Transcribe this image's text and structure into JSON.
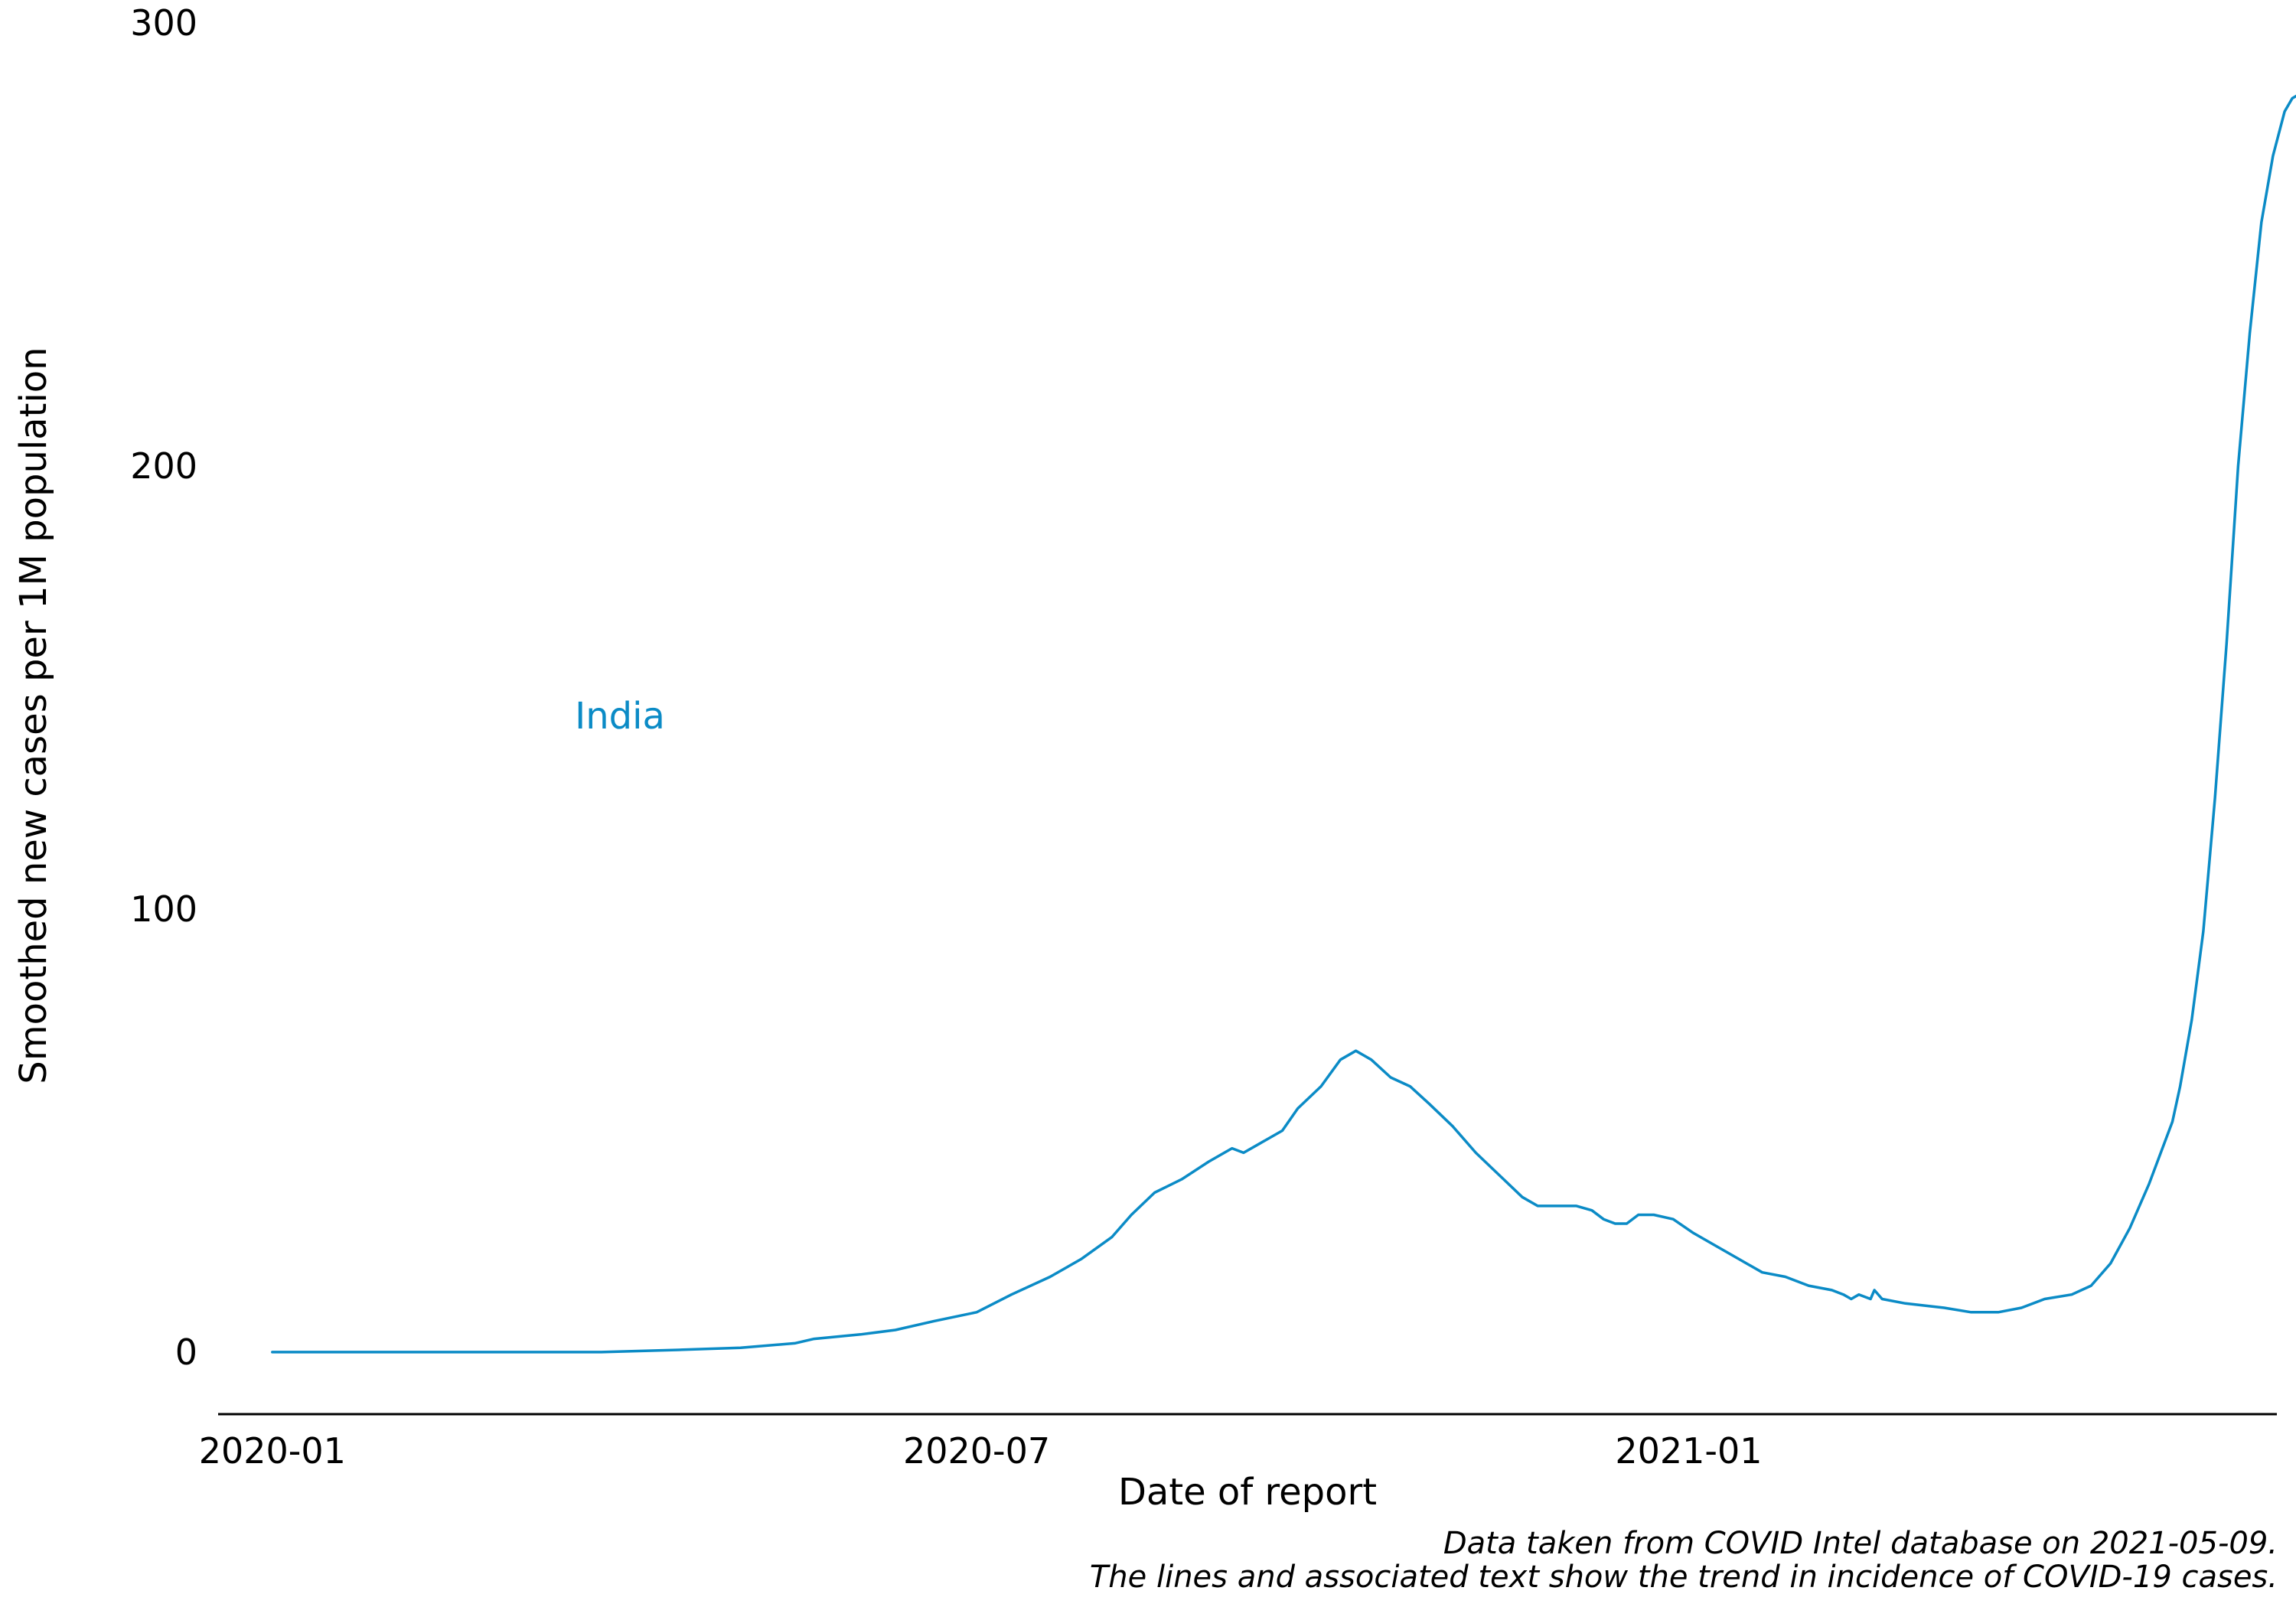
{
  "chart_data": {
    "type": "line",
    "title": "",
    "xlabel": "Date of report",
    "ylabel": "Smoothed new cases per 1M population",
    "ylim": [
      -14,
      300
    ],
    "xlim": [
      "2019-12-18",
      "2021-06-02"
    ],
    "grid": false,
    "x_ticks": [
      "2020-01",
      "2020-07",
      "2021-01"
    ],
    "x_tick_dates": [
      "2020-01-01",
      "2020-07-01",
      "2021-01-01"
    ],
    "y_ticks": [
      0,
      100,
      200,
      300
    ],
    "y_tick_labels": [
      "0",
      "100",
      "200",
      "300"
    ],
    "caption_lines": [
      "Data taken from COVID Intel database on 2021-05-09.",
      "The lines and associated text show the trend in incidence of COVID-19 cases."
    ],
    "series": [
      {
        "name": "India",
        "color": "#0b8bc6",
        "points": [
          [
            "2020-01-01",
            0
          ],
          [
            "2020-02-15",
            0
          ],
          [
            "2020-03-26",
            0
          ],
          [
            "2020-04-15",
            0.5
          ],
          [
            "2020-05-01",
            1
          ],
          [
            "2020-05-15",
            2
          ],
          [
            "2020-05-20",
            3
          ],
          [
            "2020-06-01",
            4
          ],
          [
            "2020-06-10",
            5
          ],
          [
            "2020-06-20",
            7
          ],
          [
            "2020-07-01",
            9
          ],
          [
            "2020-07-10",
            13
          ],
          [
            "2020-07-20",
            17
          ],
          [
            "2020-07-28",
            21
          ],
          [
            "2020-08-05",
            26
          ],
          [
            "2020-08-10",
            31
          ],
          [
            "2020-08-16",
            36
          ],
          [
            "2020-08-23",
            39
          ],
          [
            "2020-08-30",
            43
          ],
          [
            "2020-09-03",
            45
          ],
          [
            "2020-09-05",
            46
          ],
          [
            "2020-09-08",
            45
          ],
          [
            "2020-09-12",
            47
          ],
          [
            "2020-09-18",
            50
          ],
          [
            "2020-09-22",
            55
          ],
          [
            "2020-09-28",
            60
          ],
          [
            "2020-10-03",
            66
          ],
          [
            "2020-10-07",
            68
          ],
          [
            "2020-10-11",
            66
          ],
          [
            "2020-10-16",
            62
          ],
          [
            "2020-10-21",
            60
          ],
          [
            "2020-10-26",
            56
          ],
          [
            "2020-11-01",
            51
          ],
          [
            "2020-11-07",
            45
          ],
          [
            "2020-11-13",
            40
          ],
          [
            "2020-11-19",
            35
          ],
          [
            "2020-11-23",
            33
          ],
          [
            "2020-11-28",
            33
          ],
          [
            "2020-12-03",
            33
          ],
          [
            "2020-12-07",
            32
          ],
          [
            "2020-12-10",
            30
          ],
          [
            "2020-12-13",
            29
          ],
          [
            "2020-12-16",
            29
          ],
          [
            "2020-12-19",
            31
          ],
          [
            "2020-12-23",
            31
          ],
          [
            "2020-12-28",
            30
          ],
          [
            "2021-01-02",
            27
          ],
          [
            "2021-01-08",
            24
          ],
          [
            "2021-01-14",
            21
          ],
          [
            "2021-01-20",
            18
          ],
          [
            "2021-01-26",
            17
          ],
          [
            "2021-02-01",
            15
          ],
          [
            "2021-02-07",
            14
          ],
          [
            "2021-02-10",
            13
          ],
          [
            "2021-02-12",
            12
          ],
          [
            "2021-02-14",
            13
          ],
          [
            "2021-02-17",
            12
          ],
          [
            "2021-02-18",
            14
          ],
          [
            "2021-02-20",
            12
          ],
          [
            "2021-02-26",
            11
          ],
          [
            "2021-03-03",
            10.5
          ],
          [
            "2021-03-08",
            10
          ],
          [
            "2021-03-15",
            9
          ],
          [
            "2021-03-22",
            9
          ],
          [
            "2021-03-28",
            10
          ],
          [
            "2021-04-03",
            12
          ],
          [
            "2021-04-10",
            13
          ],
          [
            "2021-04-15",
            15
          ],
          [
            "2021-04-20",
            20
          ],
          [
            "2021-04-25",
            28
          ],
          [
            "2021-04-30",
            38
          ],
          [
            "2021-05-03",
            45
          ],
          [
            "2021-05-06",
            52
          ],
          [
            "2021-05-08",
            60
          ],
          [
            "2021-05-11",
            75
          ],
          [
            "2021-05-14",
            95
          ],
          [
            "2021-05-17",
            125
          ],
          [
            "2021-05-20",
            160
          ],
          [
            "2021-05-23",
            200
          ],
          [
            "2021-05-26",
            230
          ],
          [
            "2021-05-29",
            255
          ],
          [
            "2021-06-01",
            270
          ],
          [
            "2021-06-04",
            280
          ],
          [
            "2021-06-06",
            283
          ],
          [
            "2021-06-08",
            284
          ],
          [
            "2021-06-10",
            292
          ]
        ]
      }
    ]
  }
}
